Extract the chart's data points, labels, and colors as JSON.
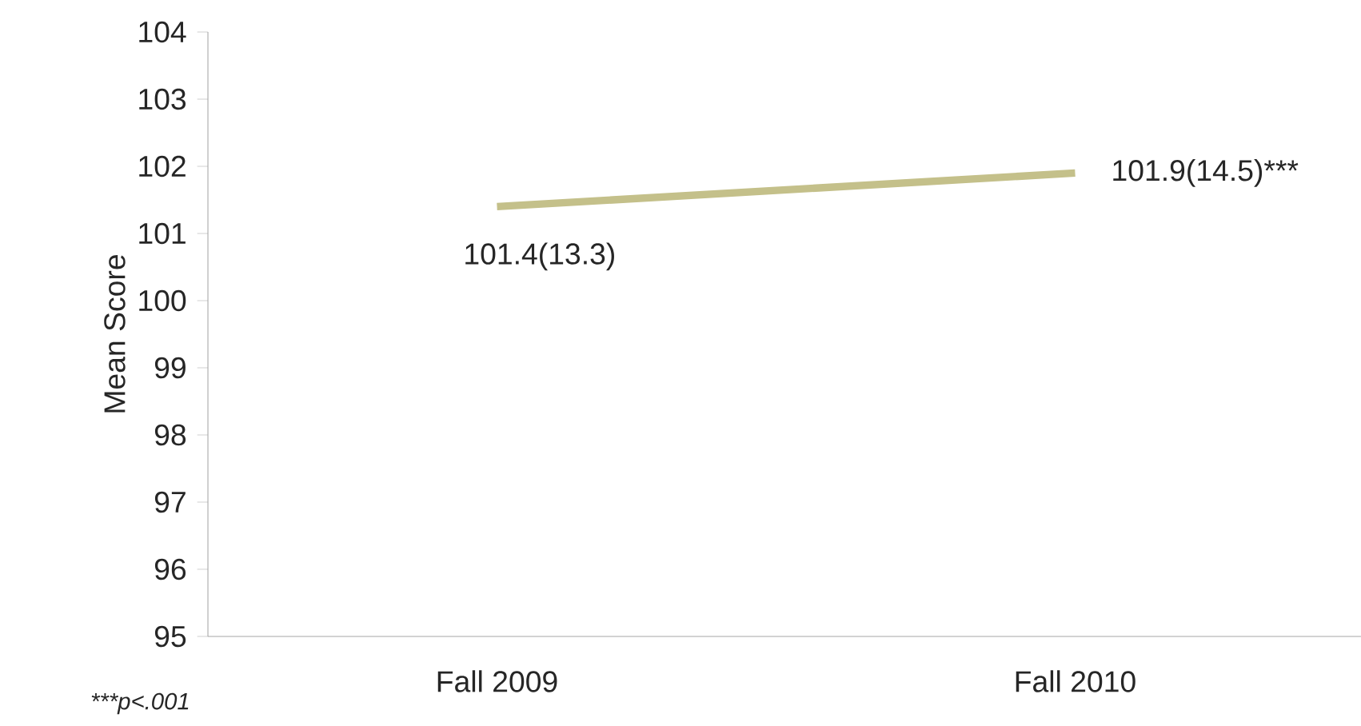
{
  "chart_data": {
    "type": "line",
    "ylabel": "Mean Score",
    "categories": [
      "Fall 2009",
      "Fall 2010"
    ],
    "series": [
      {
        "color": "#c4c08a",
        "values": [
          101.4,
          101.9
        ],
        "value_labels": [
          "101.4(13.3)",
          "101.9(14.5)***"
        ]
      }
    ],
    "ylim": [
      95,
      104
    ],
    "yticks": [
      95,
      96,
      97,
      98,
      99,
      100,
      101,
      102,
      103,
      104
    ],
    "annotations": [
      "***p<.001"
    ]
  }
}
